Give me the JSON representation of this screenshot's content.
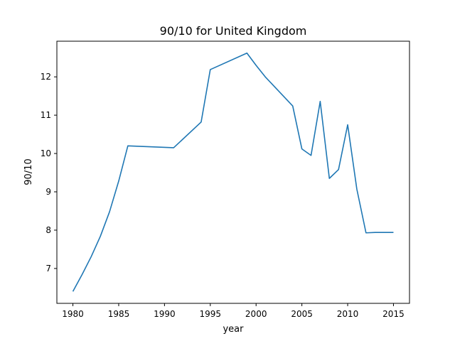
{
  "chart_data": {
    "type": "line",
    "title": "90/10 for United Kingdom",
    "xlabel": "year",
    "ylabel": "90/10",
    "xlim": [
      1978.25,
      2016.75
    ],
    "ylim": [
      6.09,
      12.93
    ],
    "xticks": [
      1980,
      1985,
      1990,
      1995,
      2000,
      2005,
      2010,
      2015
    ],
    "yticks": [
      7,
      8,
      9,
      10,
      11,
      12
    ],
    "grid": false,
    "color": "#1f77b4",
    "series": [
      {
        "x": [
          1980,
          1981,
          1982,
          1983,
          1984,
          1985,
          1986,
          1991,
          1994,
          1995,
          1999,
          2000,
          2001,
          2004,
          2005,
          2006,
          2007,
          2008,
          2009,
          2010,
          2011,
          2012,
          2013,
          2015
        ],
        "y": [
          6.4,
          6.84,
          7.31,
          7.84,
          8.48,
          9.28,
          10.2,
          10.15,
          10.82,
          12.19,
          12.62,
          12.3,
          12.0,
          11.24,
          10.12,
          9.95,
          11.36,
          9.35,
          9.58,
          10.75,
          9.07,
          7.93,
          7.94,
          7.94
        ]
      }
    ]
  }
}
